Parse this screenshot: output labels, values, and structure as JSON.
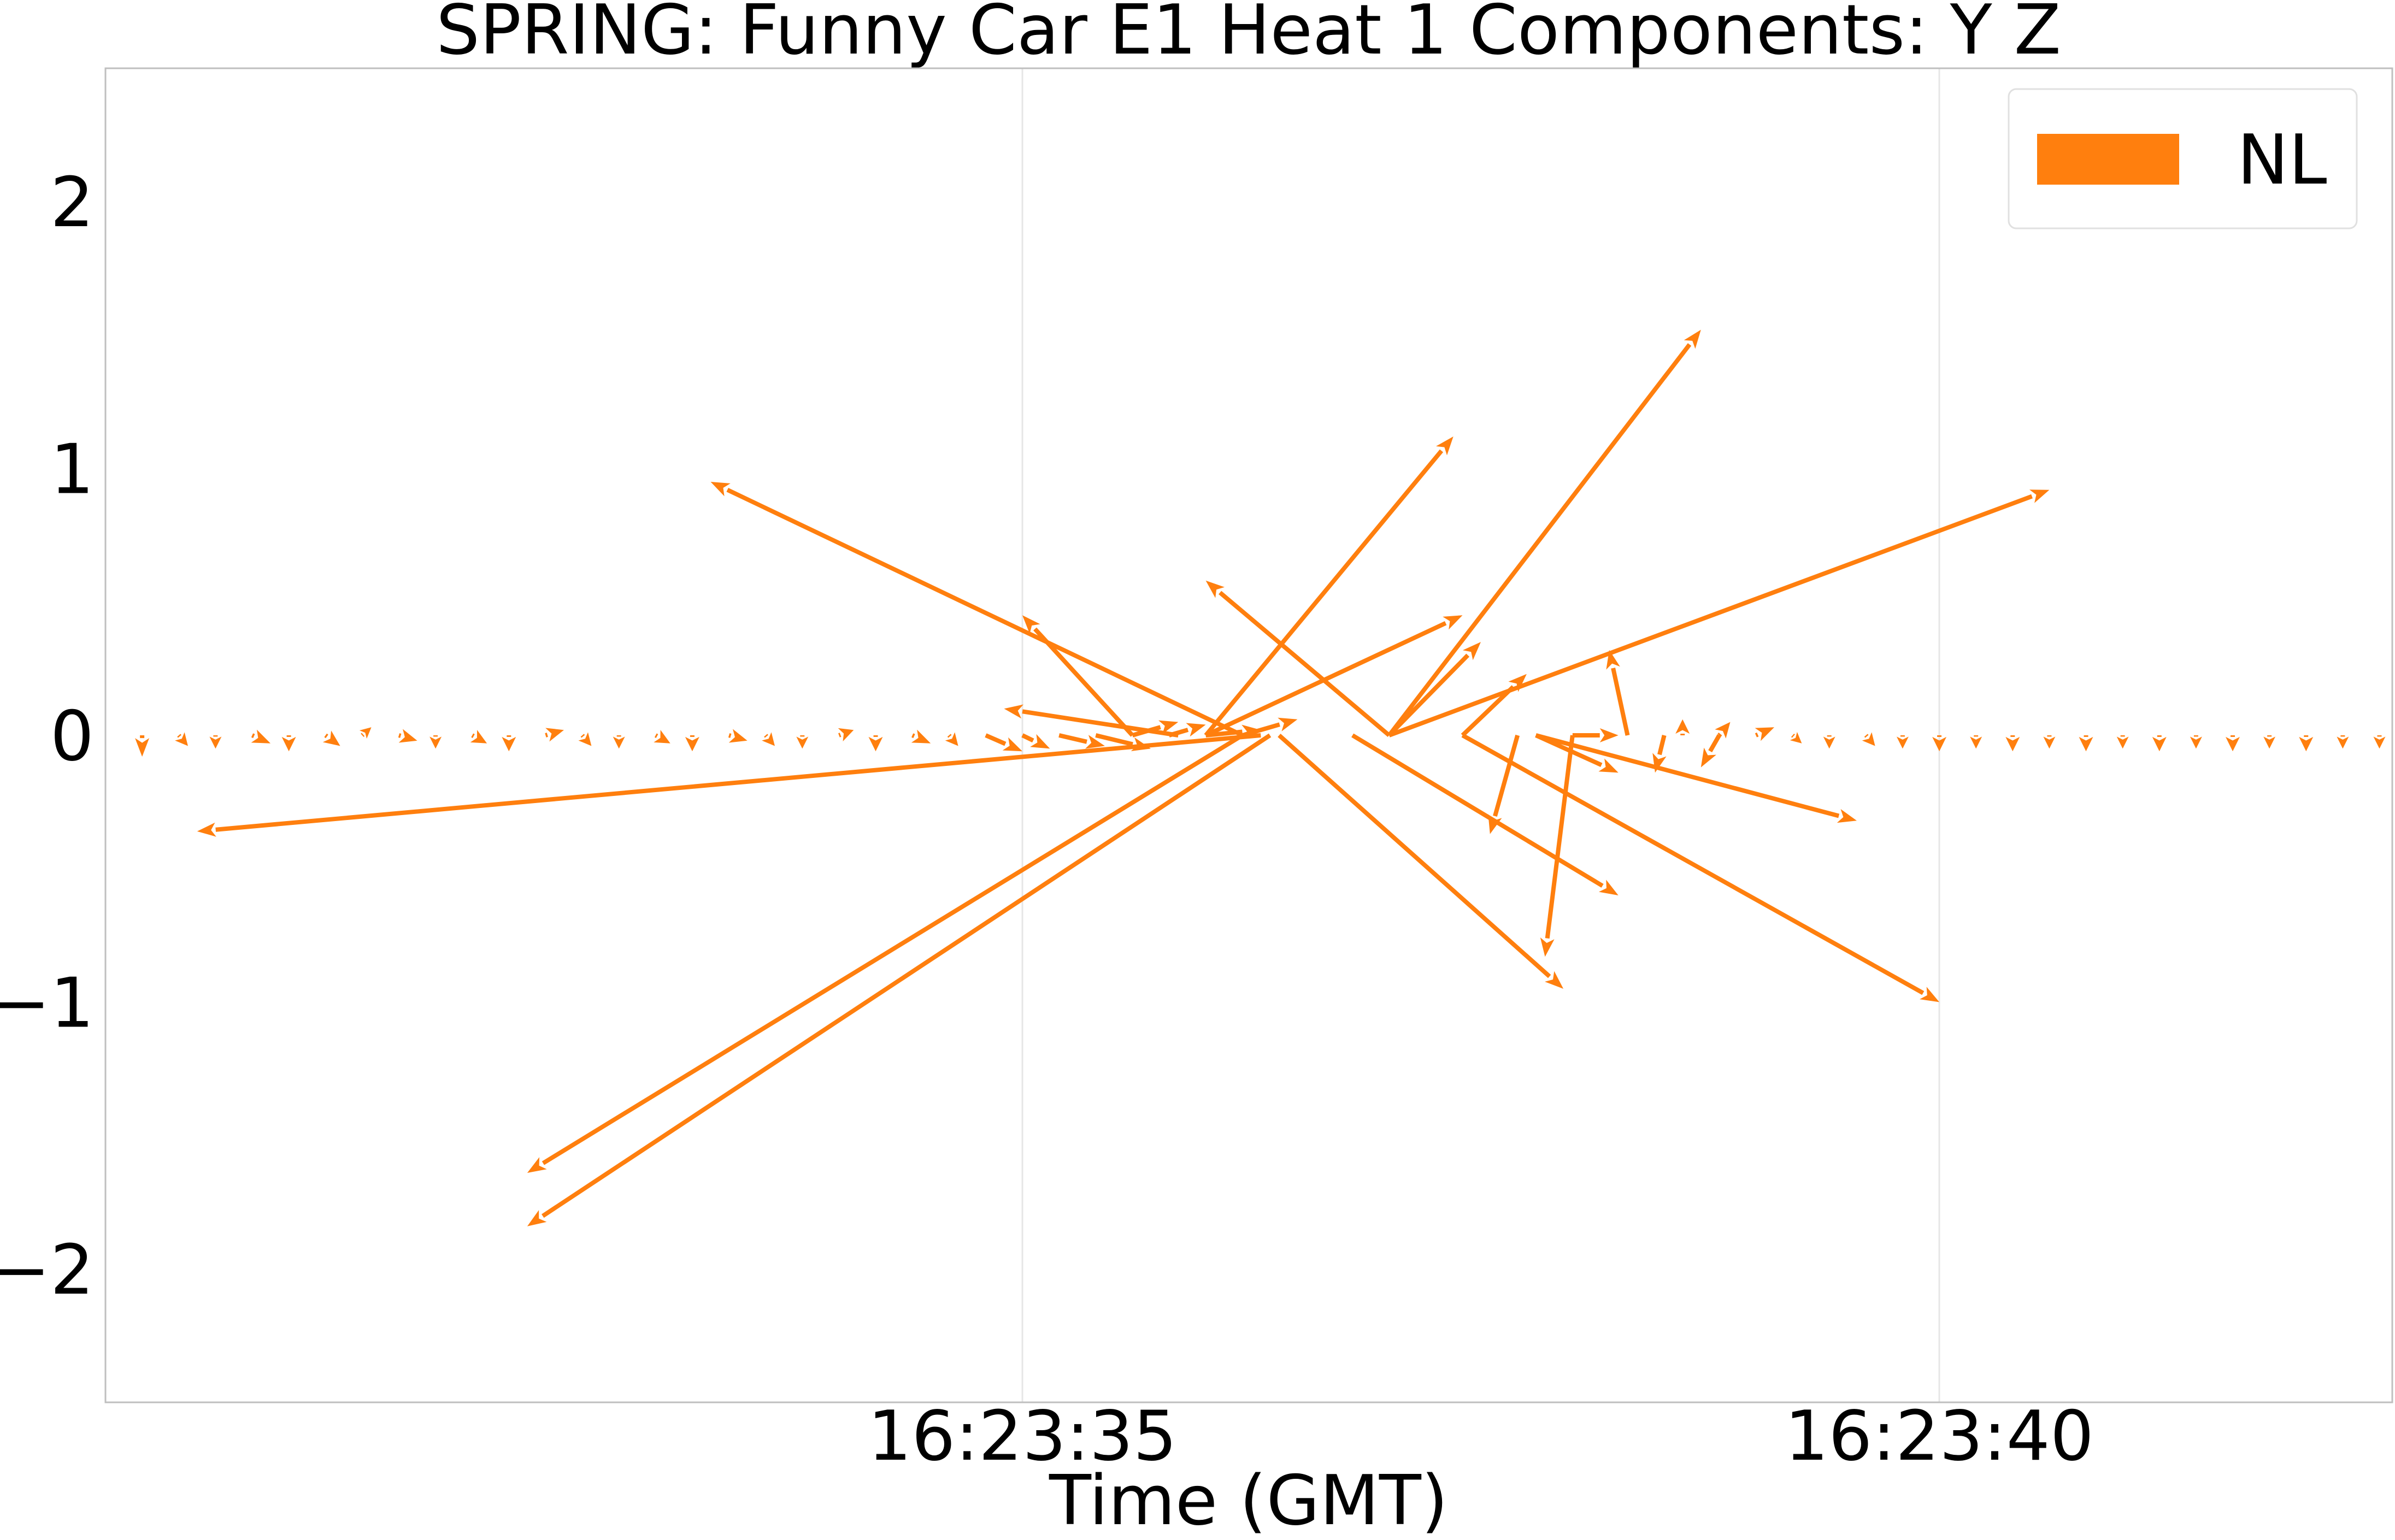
{
  "chart_data": {
    "type": "quiver",
    "title": "SPRING: Funny Car E1 Heat 1 Components: Y Z",
    "xlabel": "Time (GMT)",
    "ylabel": "",
    "x_is_time": true,
    "xlim": [
      "16:23:30.00",
      "16:23:42.47"
    ],
    "ylim": [
      -2.5,
      2.5
    ],
    "xticks": [
      {
        "t": "16:23:35",
        "label": "16:23:35"
      },
      {
        "t": "16:23:40",
        "label": "16:23:40"
      }
    ],
    "yticks": [
      {
        "v": 2,
        "label": "2"
      },
      {
        "v": 1,
        "label": "1"
      },
      {
        "v": 0,
        "label": "0"
      },
      {
        "v": -1,
        "label": "−1"
      },
      {
        "v": -2,
        "label": "−2"
      }
    ],
    "grid": "x",
    "legend": {
      "position": "top-right",
      "entries": [
        {
          "label": "NL",
          "color": "#ff7f0e"
        }
      ]
    },
    "series": [
      {
        "name": "NL",
        "color": "#ff7f0e",
        "vectors": [
          {
            "t": "16:23:30.20",
            "y": 0,
            "dx": 0.0,
            "dy": -0.08
          },
          {
            "t": "16:23:30.40",
            "y": 0,
            "dx": 0.05,
            "dy": -0.04
          },
          {
            "t": "16:23:30.60",
            "y": 0,
            "dx": 0.0,
            "dy": -0.05
          },
          {
            "t": "16:23:30.80",
            "y": 0,
            "dx": 0.1,
            "dy": -0.03
          },
          {
            "t": "16:23:31.00",
            "y": 0,
            "dx": 0.0,
            "dy": -0.06
          },
          {
            "t": "16:23:31.20",
            "y": 0,
            "dx": 0.08,
            "dy": -0.04
          },
          {
            "t": "16:23:31.40",
            "y": 0,
            "dx": 0.05,
            "dy": 0.03
          },
          {
            "t": "16:23:31.60",
            "y": 0,
            "dx": 0.1,
            "dy": -0.02
          },
          {
            "t": "16:23:31.80",
            "y": 0,
            "dx": 0.0,
            "dy": -0.05
          },
          {
            "t": "16:23:32.00",
            "y": 0,
            "dx": 0.08,
            "dy": -0.03
          },
          {
            "t": "16:23:32.20",
            "y": 0,
            "dx": 0.0,
            "dy": -0.06
          },
          {
            "t": "16:23:32.40",
            "y": 0,
            "dx": 0.1,
            "dy": 0.02
          },
          {
            "t": "16:23:32.60",
            "y": 0,
            "dx": 0.05,
            "dy": -0.04
          },
          {
            "t": "16:23:32.80",
            "y": 0,
            "dx": 0.0,
            "dy": -0.05
          },
          {
            "t": "16:23:33.00",
            "y": 0,
            "dx": 0.08,
            "dy": -0.03
          },
          {
            "t": "16:23:33.20",
            "y": 0,
            "dx": 0.0,
            "dy": -0.06
          },
          {
            "t": "16:23:33.40",
            "y": 0,
            "dx": 0.1,
            "dy": -0.02
          },
          {
            "t": "16:23:33.60",
            "y": 0,
            "dx": 0.05,
            "dy": -0.04
          },
          {
            "t": "16:23:33.80",
            "y": 0,
            "dx": 0.0,
            "dy": -0.05
          },
          {
            "t": "16:23:34.00",
            "y": 0,
            "dx": 0.08,
            "dy": 0.02
          },
          {
            "t": "16:23:34.20",
            "y": 0,
            "dx": 0.0,
            "dy": -0.06
          },
          {
            "t": "16:23:34.40",
            "y": 0,
            "dx": 0.1,
            "dy": -0.03
          },
          {
            "t": "16:23:34.60",
            "y": 0,
            "dx": 0.05,
            "dy": -0.04
          },
          {
            "t": "16:23:34.80",
            "y": 0,
            "dx": 0.2,
            "dy": -0.06
          },
          {
            "t": "16:23:35.00",
            "y": 0,
            "dx": 0.15,
            "dy": -0.05
          },
          {
            "t": "16:23:35.20",
            "y": 0,
            "dx": 0.25,
            "dy": -0.04
          },
          {
            "t": "16:23:35.40",
            "y": 0,
            "dx": 0.3,
            "dy": -0.05
          },
          {
            "t": "16:23:35.60",
            "y": 0,
            "dx": 0.25,
            "dy": 0.05
          },
          {
            "t": "16:23:35.80",
            "y": 0,
            "dx": 0.2,
            "dy": 0.04
          },
          {
            "t": "16:23:36.00",
            "y": 0,
            "dx": 0.3,
            "dy": 0.02
          },
          {
            "t": "16:23:36.30",
            "y": 0,
            "dx": -5.8,
            "dy": -0.36
          },
          {
            "t": "16:23:36.20",
            "y": 0,
            "dx": -3.9,
            "dy": -1.64
          },
          {
            "t": "16:23:36.35",
            "y": 0,
            "dx": -4.05,
            "dy": -1.84
          },
          {
            "t": "16:23:36.00",
            "y": 0,
            "dx": 1.4,
            "dy": 0.45
          },
          {
            "t": "16:23:36.00",
            "y": 0,
            "dx": 1.35,
            "dy": 1.12
          },
          {
            "t": "16:23:36.20",
            "y": 0,
            "dx": 0.3,
            "dy": 0.06
          },
          {
            "t": "16:23:35.85",
            "y": 0,
            "dx": -0.95,
            "dy": 0.1
          },
          {
            "t": "16:23:36.20",
            "y": 0,
            "dx": -2.9,
            "dy": 0.95
          },
          {
            "t": "16:23:35.60",
            "y": 0,
            "dx": -0.6,
            "dy": 0.45
          },
          {
            "t": "16:23:37.00",
            "y": 0,
            "dx": -1.0,
            "dy": 0.58
          },
          {
            "t": "16:23:37.00",
            "y": 0,
            "dx": 3.6,
            "dy": 0.92
          },
          {
            "t": "16:23:37.00",
            "y": 0,
            "dx": 1.7,
            "dy": 1.52
          },
          {
            "t": "16:23:37.00",
            "y": 0,
            "dx": 0.5,
            "dy": 0.35
          },
          {
            "t": "16:23:36.40",
            "y": 0,
            "dx": 1.55,
            "dy": -0.95
          },
          {
            "t": "16:23:36.80",
            "y": 0,
            "dx": 1.45,
            "dy": -0.6
          },
          {
            "t": "16:23:37.40",
            "y": 0,
            "dx": 0.35,
            "dy": 0.23
          },
          {
            "t": "16:23:37.70",
            "y": 0,
            "dx": -0.15,
            "dy": -0.37
          },
          {
            "t": "16:23:38.00",
            "y": 0,
            "dx": -0.15,
            "dy": -0.83
          },
          {
            "t": "16:23:37.40",
            "y": 0,
            "dx": 2.6,
            "dy": -1.0
          },
          {
            "t": "16:23:37.80",
            "y": 0,
            "dx": 1.75,
            "dy": -0.32
          },
          {
            "t": "16:23:37.80",
            "y": 0,
            "dx": 0.45,
            "dy": -0.14
          },
          {
            "t": "16:23:38.30",
            "y": 0,
            "dx": -0.1,
            "dy": 0.32
          },
          {
            "t": "16:23:38.00",
            "y": 0,
            "dx": 0.25,
            "dy": 0.0
          },
          {
            "t": "16:23:38.50",
            "y": 0,
            "dx": -0.05,
            "dy": -0.14
          },
          {
            "t": "16:23:38.60",
            "y": 0,
            "dx": 0.0,
            "dy": 0.06
          },
          {
            "t": "16:23:38.80",
            "y": 0,
            "dx": -0.1,
            "dy": -0.12
          },
          {
            "t": "16:23:38.80",
            "y": 0,
            "dx": 0.06,
            "dy": 0.05
          },
          {
            "t": "16:23:39.00",
            "y": 0,
            "dx": 0.1,
            "dy": 0.03
          },
          {
            "t": "16:23:39.20",
            "y": 0,
            "dx": 0.05,
            "dy": -0.03
          },
          {
            "t": "16:23:39.40",
            "y": 0,
            "dx": 0.0,
            "dy": -0.05
          },
          {
            "t": "16:23:39.60",
            "y": 0,
            "dx": 0.05,
            "dy": -0.04
          },
          {
            "t": "16:23:39.80",
            "y": 0,
            "dx": 0.0,
            "dy": -0.05
          },
          {
            "t": "16:23:40.00",
            "y": 0,
            "dx": 0.0,
            "dy": -0.06
          },
          {
            "t": "16:23:40.20",
            "y": 0,
            "dx": 0.0,
            "dy": -0.05
          },
          {
            "t": "16:23:40.40",
            "y": 0,
            "dx": 0.0,
            "dy": -0.06
          },
          {
            "t": "16:23:40.60",
            "y": 0,
            "dx": 0.0,
            "dy": -0.05
          },
          {
            "t": "16:23:40.80",
            "y": 0,
            "dx": 0.0,
            "dy": -0.06
          },
          {
            "t": "16:23:41.00",
            "y": 0,
            "dx": 0.0,
            "dy": -0.05
          },
          {
            "t": "16:23:41.20",
            "y": 0,
            "dx": 0.0,
            "dy": -0.06
          },
          {
            "t": "16:23:41.40",
            "y": 0,
            "dx": 0.0,
            "dy": -0.05
          },
          {
            "t": "16:23:41.60",
            "y": 0,
            "dx": 0.0,
            "dy": -0.06
          },
          {
            "t": "16:23:41.80",
            "y": 0,
            "dx": 0.0,
            "dy": -0.05
          },
          {
            "t": "16:23:42.00",
            "y": 0,
            "dx": 0.0,
            "dy": -0.06
          },
          {
            "t": "16:23:42.20",
            "y": 0,
            "dx": 0.0,
            "dy": -0.05
          },
          {
            "t": "16:23:42.40",
            "y": 0,
            "dx": 0.0,
            "dy": -0.05
          }
        ]
      }
    ]
  }
}
